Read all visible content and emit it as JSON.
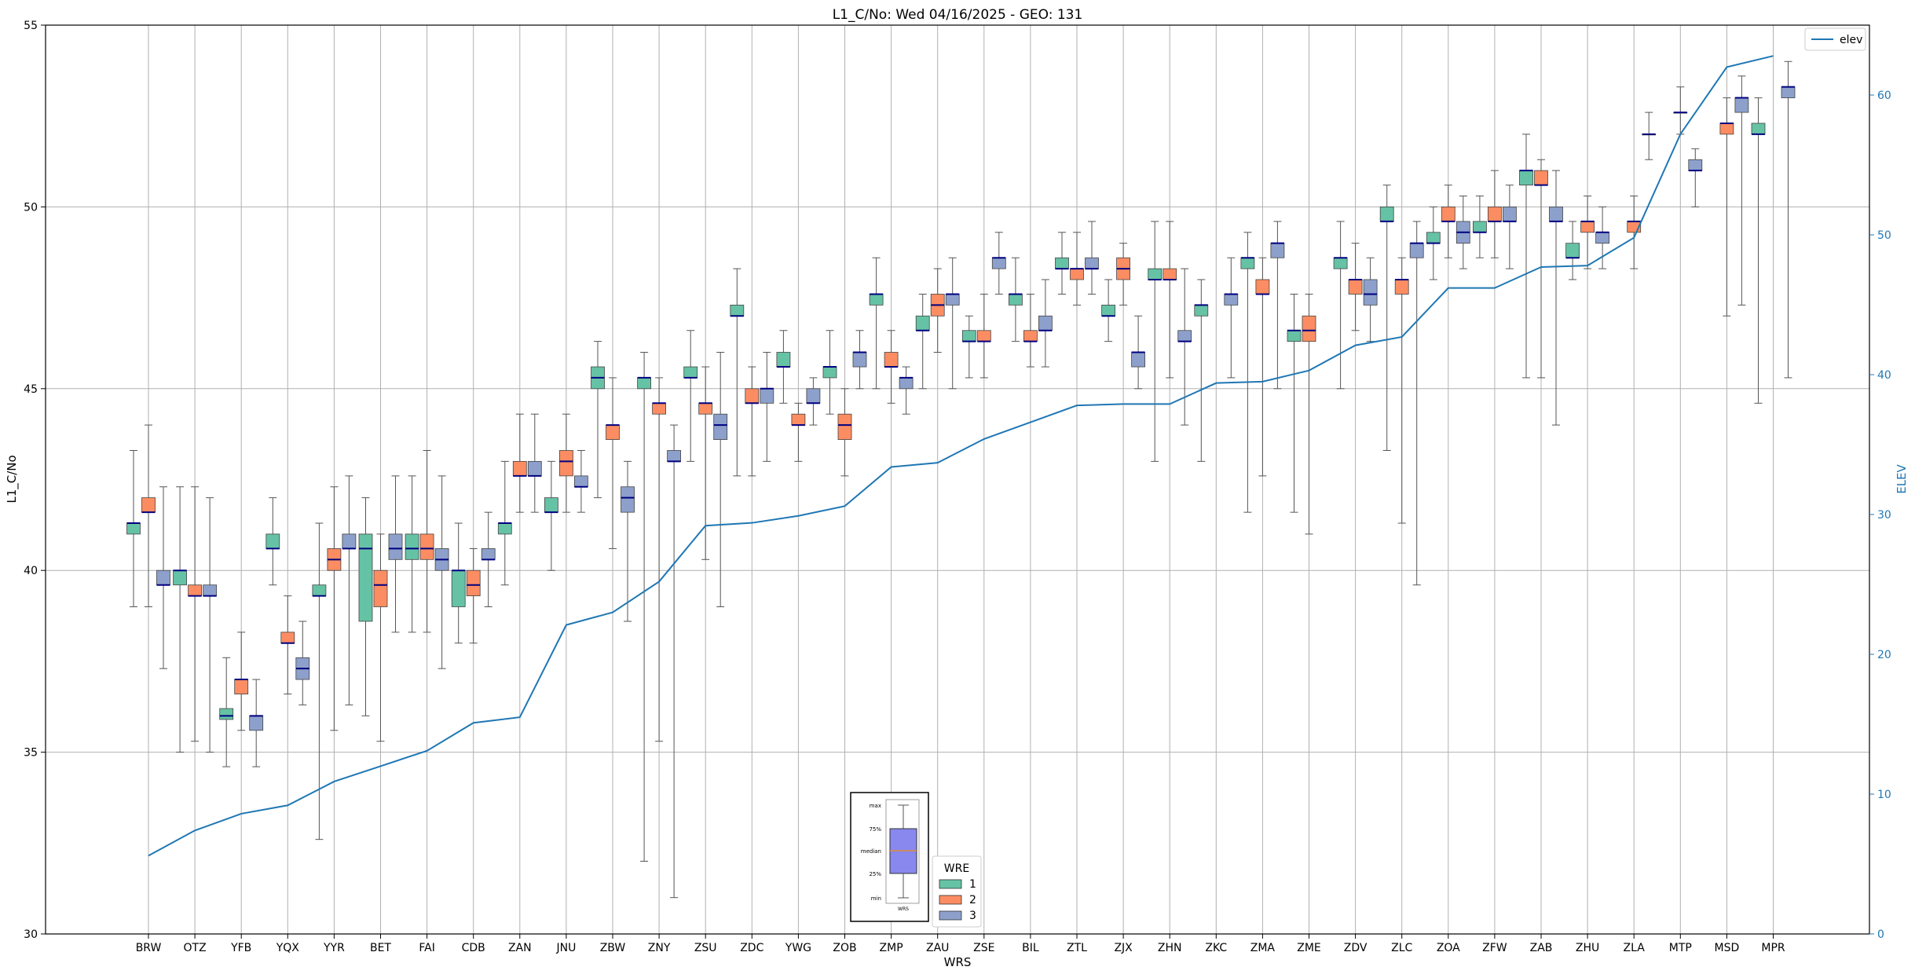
{
  "chart_data": {
    "type": "boxplot",
    "title": "L1_C/No: Wed 04/16/2025 - GEO: 131",
    "xlabel": "WRS",
    "ylabel": "L1_C/No",
    "y2label": "ELEV",
    "ylim": [
      30,
      55
    ],
    "y2lim": [
      0,
      65
    ],
    "yticks": [
      30,
      35,
      40,
      45,
      50,
      55
    ],
    "y2ticks": [
      0,
      10,
      20,
      30,
      40,
      50,
      60
    ],
    "grid": true,
    "colors": {
      "wre1": "#66c2a5",
      "wre2": "#fc8d62",
      "wre3": "#8da0cb",
      "median": "#000080",
      "elev": "#1f77b4",
      "whisker": "#555555"
    },
    "legend_line": {
      "label": "elev",
      "position": "top-right"
    },
    "legend_wre": {
      "title": "WRE",
      "labels": [
        "1",
        "2",
        "3"
      ],
      "position": "bottom-center"
    },
    "inset_key": {
      "labels": [
        "max",
        "75%",
        "median",
        "25%",
        "min"
      ],
      "caption": "WRS"
    },
    "categories": [
      "BRW",
      "OTZ",
      "YFB",
      "YQX",
      "YYR",
      "BET",
      "FAI",
      "CDB",
      "ZAN",
      "JNU",
      "ZBW",
      "ZNY",
      "ZSU",
      "ZDC",
      "YWG",
      "ZOB",
      "ZMP",
      "ZAU",
      "ZSE",
      "BIL",
      "ZTL",
      "ZJX",
      "ZHN",
      "ZKC",
      "ZMA",
      "ZME",
      "ZDV",
      "ZLC",
      "ZOA",
      "ZFW",
      "ZAB",
      "ZHU",
      "ZLA",
      "MTP",
      "MSD",
      "MPR"
    ],
    "elev": [
      5.6,
      7.4,
      8.6,
      9.2,
      10.9,
      12.0,
      13.1,
      15.1,
      15.5,
      22.1,
      23.0,
      25.2,
      29.2,
      29.4,
      29.9,
      30.6,
      33.4,
      33.7,
      35.4,
      36.6,
      37.8,
      37.9,
      37.9,
      39.4,
      39.5,
      40.3,
      42.1,
      42.7,
      46.2,
      46.2,
      47.7,
      47.8,
      49.8,
      57.2,
      62.0,
      62.8
    ],
    "series": [
      {
        "name": "1",
        "boxes": [
          [
            39.0,
            41.0,
            41.3,
            41.3,
            43.3
          ],
          [
            35.0,
            39.6,
            40.0,
            40.0,
            42.3
          ],
          [
            34.6,
            35.9,
            36.0,
            36.2,
            37.6
          ],
          [
            39.6,
            40.6,
            40.6,
            41.0,
            42.0
          ],
          [
            32.6,
            39.3,
            39.3,
            39.6,
            41.3
          ],
          [
            36.0,
            38.6,
            40.6,
            41.0,
            42.0
          ],
          [
            38.3,
            40.3,
            40.6,
            41.0,
            42.6
          ],
          [
            38.0,
            39.0,
            40.0,
            40.0,
            41.3
          ],
          [
            39.6,
            41.0,
            41.3,
            41.3,
            43.0
          ],
          [
            40.0,
            41.6,
            41.6,
            42.0,
            43.0
          ],
          [
            42.0,
            45.0,
            45.3,
            45.6,
            46.3
          ],
          [
            32.0,
            45.0,
            45.3,
            45.3,
            46.0
          ],
          [
            43.0,
            45.3,
            45.3,
            45.6,
            46.6
          ],
          [
            42.6,
            47.0,
            47.0,
            47.3,
            48.3
          ],
          [
            44.6,
            45.6,
            45.6,
            46.0,
            46.6
          ],
          [
            44.3,
            45.3,
            45.6,
            45.6,
            46.6
          ],
          [
            45.0,
            47.3,
            47.6,
            47.6,
            48.6
          ],
          [
            45.0,
            46.6,
            46.6,
            47.0,
            47.6
          ],
          [
            45.3,
            46.3,
            46.3,
            46.6,
            47.0
          ],
          [
            46.3,
            47.3,
            47.6,
            47.6,
            48.6
          ],
          [
            47.6,
            48.3,
            48.3,
            48.6,
            49.3
          ],
          [
            46.3,
            47.0,
            47.0,
            47.3,
            48.0
          ],
          [
            43.0,
            48.0,
            48.0,
            48.3,
            49.6
          ],
          [
            43.0,
            47.0,
            47.3,
            47.3,
            48.0
          ],
          [
            41.6,
            48.3,
            48.6,
            48.6,
            49.3
          ],
          [
            41.6,
            46.3,
            46.6,
            46.6,
            47.6
          ],
          [
            45.0,
            48.3,
            48.6,
            48.6,
            49.6
          ],
          [
            43.3,
            49.6,
            49.6,
            50.0,
            50.6
          ],
          [
            48.0,
            49.0,
            49.0,
            49.3,
            50.0
          ],
          [
            48.6,
            49.3,
            49.3,
            49.6,
            50.3
          ],
          [
            45.3,
            50.6,
            51.0,
            51.0,
            52.0
          ],
          [
            48.0,
            48.6,
            48.6,
            49.0,
            49.6
          ],
          null,
          null,
          null,
          [
            44.6,
            52.0,
            52.0,
            52.3,
            53.0
          ]
        ]
      },
      {
        "name": "2",
        "boxes": [
          [
            39.0,
            41.6,
            41.6,
            42.0,
            44.0
          ],
          [
            35.3,
            39.3,
            39.3,
            39.6,
            42.3
          ],
          [
            35.6,
            36.6,
            37.0,
            37.0,
            38.3
          ],
          [
            36.6,
            38.0,
            38.0,
            38.3,
            39.3
          ],
          [
            35.6,
            40.0,
            40.3,
            40.6,
            42.3
          ],
          [
            35.3,
            39.0,
            39.6,
            40.0,
            41.0
          ],
          [
            38.3,
            40.3,
            40.6,
            41.0,
            43.3
          ],
          [
            38.0,
            39.3,
            39.6,
            40.0,
            40.6
          ],
          [
            41.6,
            42.6,
            42.6,
            43.0,
            44.3
          ],
          [
            41.6,
            42.6,
            43.0,
            43.3,
            44.3
          ],
          [
            40.6,
            43.6,
            44.0,
            44.0,
            45.3
          ],
          [
            35.3,
            44.3,
            44.6,
            44.6,
            45.3
          ],
          [
            40.3,
            44.3,
            44.6,
            44.6,
            45.6
          ],
          [
            42.6,
            44.6,
            44.6,
            45.0,
            45.6
          ],
          [
            43.0,
            44.0,
            44.0,
            44.3,
            44.6
          ],
          [
            42.6,
            43.6,
            44.0,
            44.3,
            45.0
          ],
          [
            44.6,
            45.6,
            45.6,
            46.0,
            46.6
          ],
          [
            46.0,
            47.0,
            47.3,
            47.6,
            48.3
          ],
          [
            45.3,
            46.3,
            46.3,
            46.6,
            47.6
          ],
          [
            45.6,
            46.3,
            46.3,
            46.6,
            47.6
          ],
          [
            47.3,
            48.0,
            48.3,
            48.3,
            49.3
          ],
          [
            47.3,
            48.0,
            48.3,
            48.6,
            49.0
          ],
          [
            45.3,
            48.0,
            48.0,
            48.3,
            49.6
          ],
          null,
          [
            42.6,
            47.6,
            47.6,
            48.0,
            48.6
          ],
          [
            41.0,
            46.3,
            46.6,
            47.0,
            47.6
          ],
          [
            46.6,
            47.6,
            48.0,
            48.0,
            49.0
          ],
          [
            41.3,
            47.6,
            48.0,
            48.0,
            48.6
          ],
          [
            48.6,
            49.6,
            49.6,
            50.0,
            50.6
          ],
          [
            48.6,
            49.6,
            49.6,
            50.0,
            51.0
          ],
          [
            45.3,
            50.6,
            50.6,
            51.0,
            51.3
          ],
          [
            48.3,
            49.3,
            49.6,
            49.6,
            50.3
          ],
          [
            48.3,
            49.3,
            49.6,
            49.6,
            50.3
          ],
          [
            52.0,
            52.6,
            52.6,
            52.6,
            53.3
          ],
          [
            47.0,
            52.0,
            52.3,
            52.3,
            53.0
          ],
          null
        ]
      },
      {
        "name": "3",
        "boxes": [
          [
            37.3,
            39.6,
            39.6,
            40.0,
            42.3
          ],
          [
            35.0,
            39.3,
            39.3,
            39.6,
            42.0
          ],
          [
            34.6,
            35.6,
            36.0,
            36.0,
            37.0
          ],
          [
            36.3,
            37.0,
            37.3,
            37.6,
            38.6
          ],
          [
            36.3,
            40.6,
            40.6,
            41.0,
            42.6
          ],
          [
            38.3,
            40.3,
            40.6,
            41.0,
            42.6
          ],
          [
            37.3,
            40.0,
            40.3,
            40.6,
            42.6
          ],
          [
            39.0,
            40.3,
            40.3,
            40.6,
            41.6
          ],
          [
            41.6,
            42.6,
            42.6,
            43.0,
            44.3
          ],
          [
            41.6,
            42.3,
            42.3,
            42.6,
            43.3
          ],
          [
            38.6,
            41.6,
            42.0,
            42.3,
            43.0
          ],
          [
            31.0,
            43.0,
            43.0,
            43.3,
            44.0
          ],
          [
            39.0,
            43.6,
            44.0,
            44.3,
            46.0
          ],
          [
            43.0,
            44.6,
            45.0,
            45.0,
            46.0
          ],
          [
            44.0,
            44.6,
            44.6,
            45.0,
            45.3
          ],
          [
            45.0,
            45.6,
            46.0,
            46.0,
            46.6
          ],
          [
            44.3,
            45.0,
            45.3,
            45.3,
            45.6
          ],
          [
            45.0,
            47.3,
            47.6,
            47.6,
            48.6
          ],
          [
            47.6,
            48.3,
            48.6,
            48.6,
            49.3
          ],
          [
            45.6,
            46.6,
            46.6,
            47.0,
            48.0
          ],
          [
            47.6,
            48.3,
            48.3,
            48.6,
            49.6
          ],
          [
            45.0,
            45.6,
            46.0,
            46.0,
            47.0
          ],
          [
            44.0,
            46.3,
            46.3,
            46.6,
            48.3
          ],
          [
            45.3,
            47.3,
            47.6,
            47.6,
            48.6
          ],
          [
            45.0,
            48.6,
            49.0,
            49.0,
            49.6
          ],
          null,
          [
            46.3,
            47.3,
            47.6,
            48.0,
            48.6
          ],
          [
            39.6,
            48.6,
            49.0,
            49.0,
            49.6
          ],
          [
            48.3,
            49.0,
            49.3,
            49.6,
            50.3
          ],
          [
            48.3,
            49.6,
            49.6,
            50.0,
            50.6
          ],
          [
            44.0,
            49.6,
            49.6,
            50.0,
            51.0
          ],
          [
            48.3,
            49.0,
            49.3,
            49.3,
            50.0
          ],
          [
            51.3,
            52.0,
            52.0,
            52.0,
            52.6
          ],
          [
            50.0,
            51.0,
            51.0,
            51.3,
            51.6
          ],
          [
            47.3,
            52.6,
            53.0,
            53.0,
            53.6
          ],
          [
            45.3,
            53.0,
            53.3,
            53.3,
            54.0
          ]
        ]
      }
    ]
  }
}
